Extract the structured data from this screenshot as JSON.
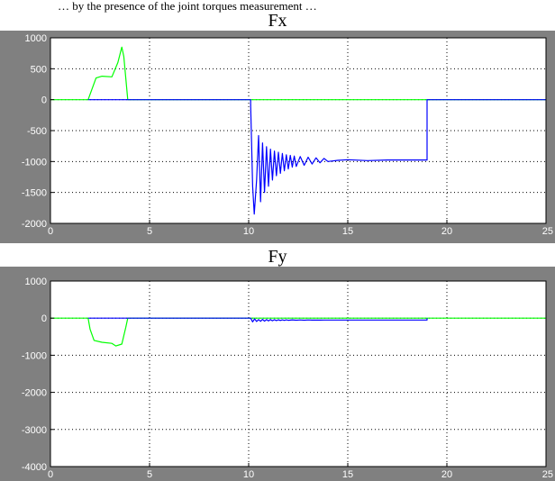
{
  "caption": "… by the presence of the joint torques measurement …",
  "colors": {
    "figure_background": "#808080",
    "axes_background": "#ffffff",
    "grid": "#000000",
    "tick_label": "#ffffff",
    "series_blue": "#0000ff",
    "series_green": "#00ff00"
  },
  "chart_data": [
    {
      "type": "line",
      "title": "Fx",
      "xlim": [
        0,
        25
      ],
      "ylim": [
        -2000,
        1000
      ],
      "xticks": [
        0,
        5,
        10,
        15,
        20,
        25
      ],
      "yticks": [
        -2000,
        -1500,
        -1000,
        -500,
        0,
        500,
        1000
      ],
      "grid": true,
      "legend": "none",
      "series": [
        {
          "color": "#00ff00",
          "x": [
            0,
            1.9,
            2.3,
            2.6,
            3.1,
            3.4,
            3.6,
            3.7,
            3.9,
            3.9,
            25
          ],
          "y": [
            0,
            0,
            350,
            380,
            370,
            600,
            850,
            700,
            0,
            0,
            0
          ]
        },
        {
          "color": "#0000ff",
          "x": [
            1.9,
            3.9,
            10.1,
            10.1,
            10.2,
            10.28,
            10.4,
            10.5,
            10.6,
            10.7,
            10.8,
            10.9,
            11.0,
            11.1,
            11.2,
            11.3,
            11.4,
            11.5,
            11.6,
            11.7,
            11.8,
            11.9,
            12.0,
            12.1,
            12.2,
            12.3,
            12.4,
            12.6,
            12.8,
            13.0,
            13.2,
            13.4,
            13.6,
            13.8,
            14.0,
            14.5,
            15.0,
            16.0,
            17.0,
            19.0,
            19.0,
            25
          ],
          "y": [
            0,
            0,
            0,
            -80,
            -1400,
            -1850,
            -1300,
            -580,
            -1650,
            -700,
            -1500,
            -760,
            -1400,
            -800,
            -1300,
            -830,
            -1230,
            -850,
            -1190,
            -870,
            -1150,
            -890,
            -1120,
            -900,
            -1090,
            -910,
            -1080,
            -920,
            -1060,
            -930,
            -1040,
            -940,
            -1020,
            -950,
            -1000,
            -980,
            -970,
            -985,
            -975,
            -975,
            0,
            0
          ]
        }
      ]
    },
    {
      "type": "line",
      "title": "Fy",
      "xlim": [
        0,
        25
      ],
      "ylim": [
        -4000,
        1000
      ],
      "xticks": [
        0,
        5,
        10,
        15,
        20,
        25
      ],
      "yticks": [
        -4000,
        -3000,
        -2000,
        -1000,
        0,
        1000
      ],
      "grid": true,
      "legend": "none",
      "series": [
        {
          "color": "#00ff00",
          "x": [
            0,
            1.9,
            2.0,
            2.2,
            2.6,
            3.1,
            3.3,
            3.6,
            3.8,
            3.9,
            25
          ],
          "y": [
            0,
            0,
            -300,
            -600,
            -650,
            -680,
            -750,
            -700,
            -250,
            0,
            0
          ]
        },
        {
          "color": "#0000ff",
          "x": [
            1.9,
            3.9,
            10.1,
            10.2,
            10.3,
            10.4,
            10.5,
            10.6,
            10.7,
            10.8,
            10.9,
            11.0,
            11.1,
            11.2,
            11.3,
            11.4,
            11.5,
            11.6,
            11.7,
            11.8,
            11.9,
            12.0,
            12.2,
            12.4,
            12.6,
            12.8,
            13.0,
            13.2,
            13.4,
            13.6,
            13.8,
            14.0,
            14.5,
            15.0,
            16.0,
            17.0,
            18.0,
            19.0,
            19.0
          ],
          "y": [
            0,
            0,
            0,
            -100,
            -20,
            -90,
            -40,
            -85,
            -35,
            -80,
            -40,
            -75,
            -40,
            -70,
            -42,
            -65,
            -44,
            -62,
            -45,
            -60,
            -46,
            -58,
            -47,
            -56,
            -48,
            -55,
            -49,
            -54,
            -50,
            -53,
            -50,
            -52,
            -51,
            -50,
            -51,
            -50,
            -50,
            -50,
            0
          ]
        }
      ]
    }
  ]
}
